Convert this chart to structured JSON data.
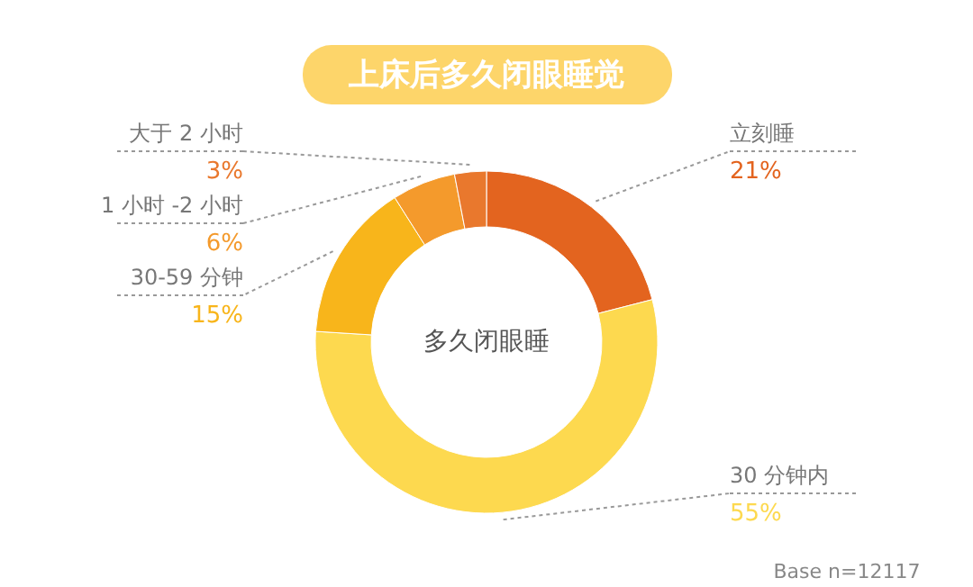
{
  "chart_data": {
    "type": "donut",
    "title": "上床后多久闭眼睡觉",
    "categories": [
      "立刻睡",
      "30 分钟内",
      "30-59 分钟",
      "1 小时 -2 小时",
      "大于 2 小时"
    ],
    "values": [
      21,
      55,
      15,
      6,
      3
    ],
    "value_labels": [
      "21%",
      "55%",
      "15%",
      "6%",
      "3%"
    ],
    "colors": [
      "#e3641f",
      "#fdd94f",
      "#f8b51b",
      "#f49a2c",
      "#e9782d"
    ],
    "annotations": [
      "多久闭眼睡",
      "Base n=12117"
    ]
  }
}
